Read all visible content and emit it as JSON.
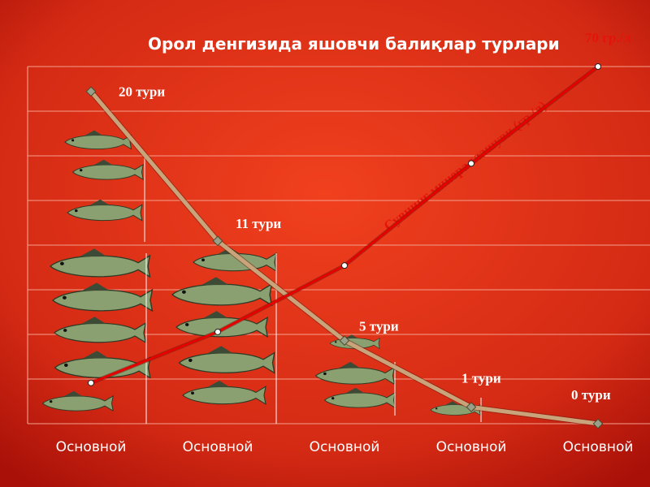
{
  "chart_data": {
    "type": "line",
    "title": "Орол денгизида яшовчи балиқлар турлари",
    "annotation": "Сувнинг минераллашуви (гр./л)",
    "categories": [
      "Основной",
      "Основной",
      "Основной",
      "Основной",
      "Основной"
    ],
    "ylim": [
      0,
      21.5
    ],
    "y2lim": [
      0,
      70
    ],
    "grid": true,
    "series": [
      {
        "color": "#c9a47a",
        "values": [
          20,
          11,
          5,
          1,
          0
        ],
        "value_labels": [
          "20 тури",
          "11 тури",
          "5 тури",
          "1 тури",
          "0 тури"
        ]
      },
      {
        "color": "#e60000",
        "axis": "y2",
        "values": [
          8,
          18,
          31,
          51,
          70
        ],
        "value_labels": [
          null,
          null,
          null,
          null,
          "70 гр./л"
        ]
      }
    ]
  }
}
